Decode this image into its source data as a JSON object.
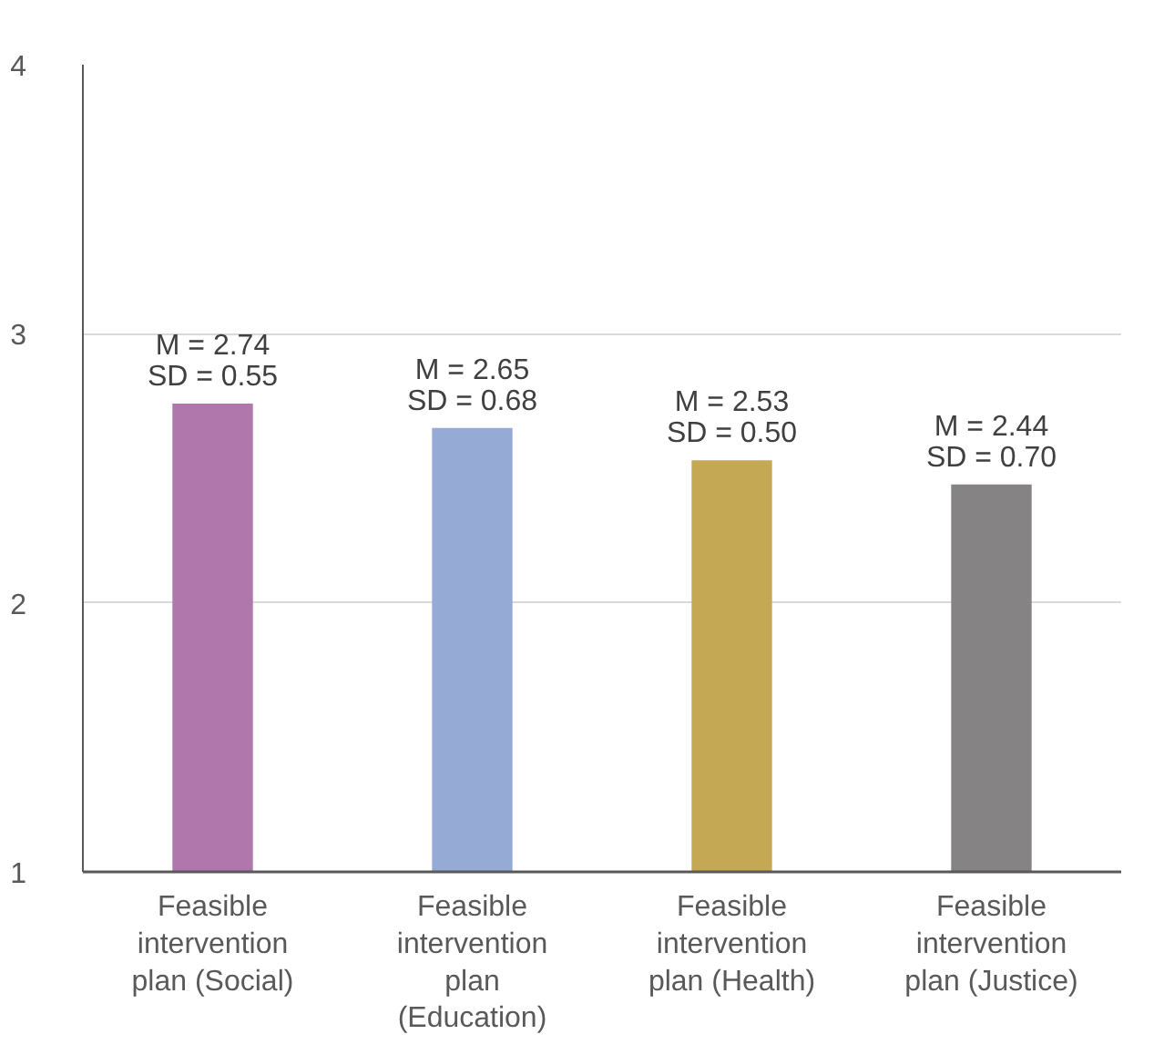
{
  "chart_data": {
    "type": "bar",
    "categories": [
      "Feasible intervention plan (Social)",
      "Feasible intervention plan (Education)",
      "Feasible intervention plan (Health)",
      "Feasible intervention plan (Justice)"
    ],
    "values": [
      2.74,
      2.65,
      2.53,
      2.44
    ],
    "colors": [
      "#b077ac",
      "#95aad4",
      "#c5a854",
      "#858384"
    ],
    "value_labels": [
      "M = 2.74\nSD = 0.55",
      "M = 2.65\nSD = 0.68",
      "M = 2.53\nSD = 0.50",
      "M = 2.44\nSD = 0.70"
    ],
    "ylim": [
      1,
      4
    ],
    "yticks": [
      1,
      2,
      3,
      4
    ],
    "grid": "y"
  }
}
